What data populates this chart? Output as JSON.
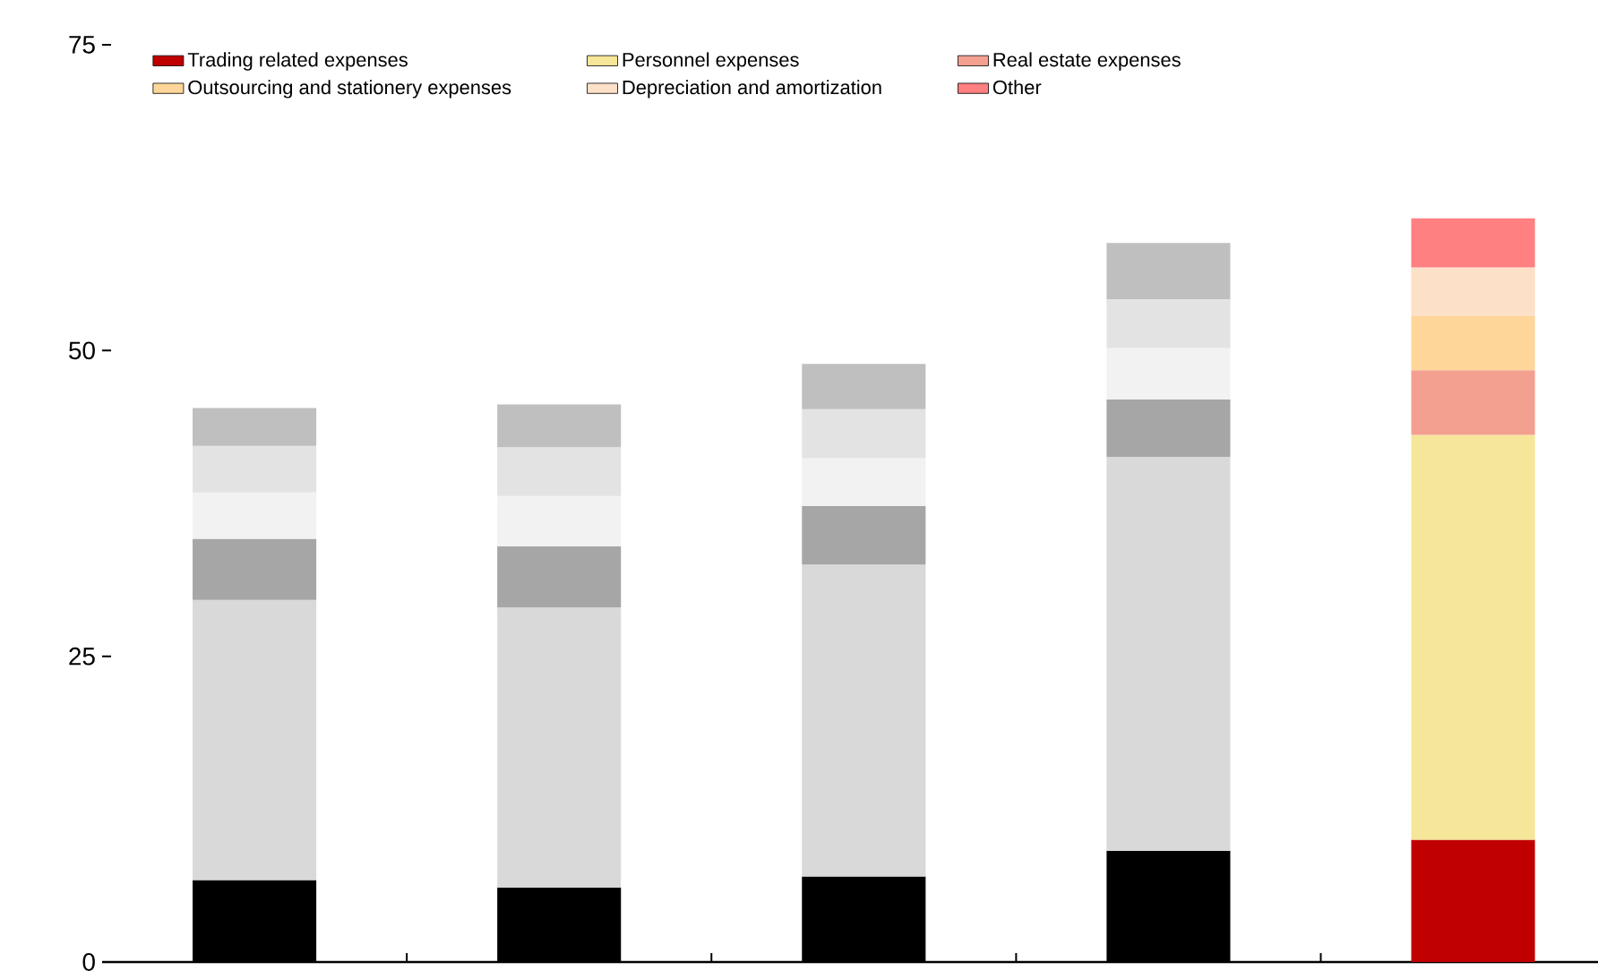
{
  "chart_data": {
    "type": "bar",
    "stacked": true,
    "categories": [
      null,
      null,
      null,
      null,
      null
    ],
    "ylim": [
      0,
      75
    ],
    "yticks": [
      0,
      25,
      50,
      75
    ],
    "legend": "top",
    "series": [
      {
        "name": "Trading related expenses",
        "color": "#c00000",
        "colors": [
          "#000000",
          "#000000",
          "#000000",
          "#000000",
          "#c00000"
        ],
        "values": [
          6.7,
          6.1,
          7.0,
          9.1,
          10.0
        ]
      },
      {
        "name": "Personnel expenses",
        "color": "#f5e699",
        "colors": [
          "#d9d9d9",
          "#d9d9d9",
          "#d9d9d9",
          "#d9d9d9",
          "#f5e699"
        ],
        "values": [
          22.9,
          22.9,
          25.5,
          32.2,
          33.1
        ]
      },
      {
        "name": "Real estate expenses",
        "color": "#f4a090",
        "colors": [
          "#a6a6a6",
          "#a6a6a6",
          "#a6a6a6",
          "#a6a6a6",
          "#f4a090"
        ],
        "values": [
          5.0,
          5.0,
          4.8,
          4.7,
          5.3
        ]
      },
      {
        "name": "Outsourcing and stationery expenses",
        "color": "#ffd699",
        "colors": [
          "#f2f2f2",
          "#f2f2f2",
          "#f2f2f2",
          "#f2f2f2",
          "#ffd699"
        ],
        "values": [
          3.8,
          4.1,
          3.9,
          4.2,
          4.4
        ]
      },
      {
        "name": "Depreciation and amortization",
        "color": "#fde0c8",
        "colors": [
          "#e3e3e3",
          "#e3e3e3",
          "#e3e3e3",
          "#e3e3e3",
          "#fde0c8"
        ],
        "values": [
          3.8,
          4.0,
          4.0,
          4.0,
          4.0
        ]
      },
      {
        "name": "Other",
        "color": "#ff8080",
        "colors": [
          "#bfbfbf",
          "#bfbfbf",
          "#bfbfbf",
          "#bfbfbf",
          "#ff8080"
        ],
        "values": [
          3.1,
          3.5,
          3.7,
          4.6,
          4.0
        ]
      }
    ]
  }
}
